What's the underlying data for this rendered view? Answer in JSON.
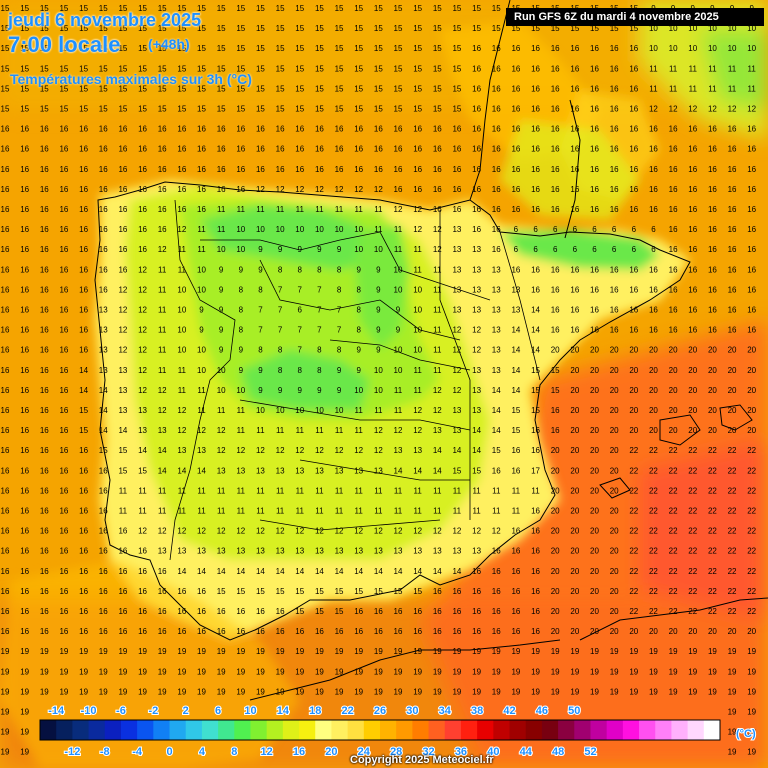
{
  "header": {
    "date": "jeudi 6 novembre 2025",
    "time": "7:00 locale",
    "lead": "(+48h)",
    "variable": "Températures maximales sur 3h (°C)",
    "run": "Run GFS 6Z du mardi 4 novembre 2025"
  },
  "footer": {
    "copyright": "Copyright 2025 Meteociel.fr"
  },
  "legend": {
    "unit": "(°C)",
    "top_labels": [
      "-14",
      "-10",
      "-6",
      "-2",
      "2",
      "6",
      "10",
      "14",
      "18",
      "22",
      "26",
      "30",
      "34",
      "38",
      "42",
      "46",
      "50"
    ],
    "bottom_labels": [
      "-12",
      "-8",
      "-4",
      "0",
      "4",
      "8",
      "12",
      "16",
      "20",
      "24",
      "28",
      "32",
      "36",
      "40",
      "44",
      "48",
      "52"
    ],
    "colors": [
      "#051040",
      "#06205e",
      "#082c7c",
      "#0a2a9e",
      "#0b20c0",
      "#0a30e0",
      "#0a55f0",
      "#1180f5",
      "#20a8f0",
      "#30c8e8",
      "#40e0d0",
      "#40e890",
      "#50f050",
      "#80f030",
      "#b4f020",
      "#dff018",
      "#f6f010",
      "#ffff80",
      "#fff060",
      "#ffe040",
      "#ffcd00",
      "#ffb300",
      "#ff9a00",
      "#ff7d00",
      "#ff6020",
      "#ff4030",
      "#ff2010",
      "#e80000",
      "#c00000",
      "#a00000",
      "#880000",
      "#780010",
      "#8a0040",
      "#a00070",
      "#c000a0",
      "#e000c8",
      "#ff10e0",
      "#ff50f0",
      "#ff80f8",
      "#ffb0fc",
      "#ffd8fe",
      "#ffffff"
    ]
  },
  "map": {
    "grid": {
      "cols": 39,
      "x0": 5,
      "dx": 19.65,
      "rows": 38,
      "y0": 3,
      "dy": 20.1
    },
    "region_labels": []
  }
}
